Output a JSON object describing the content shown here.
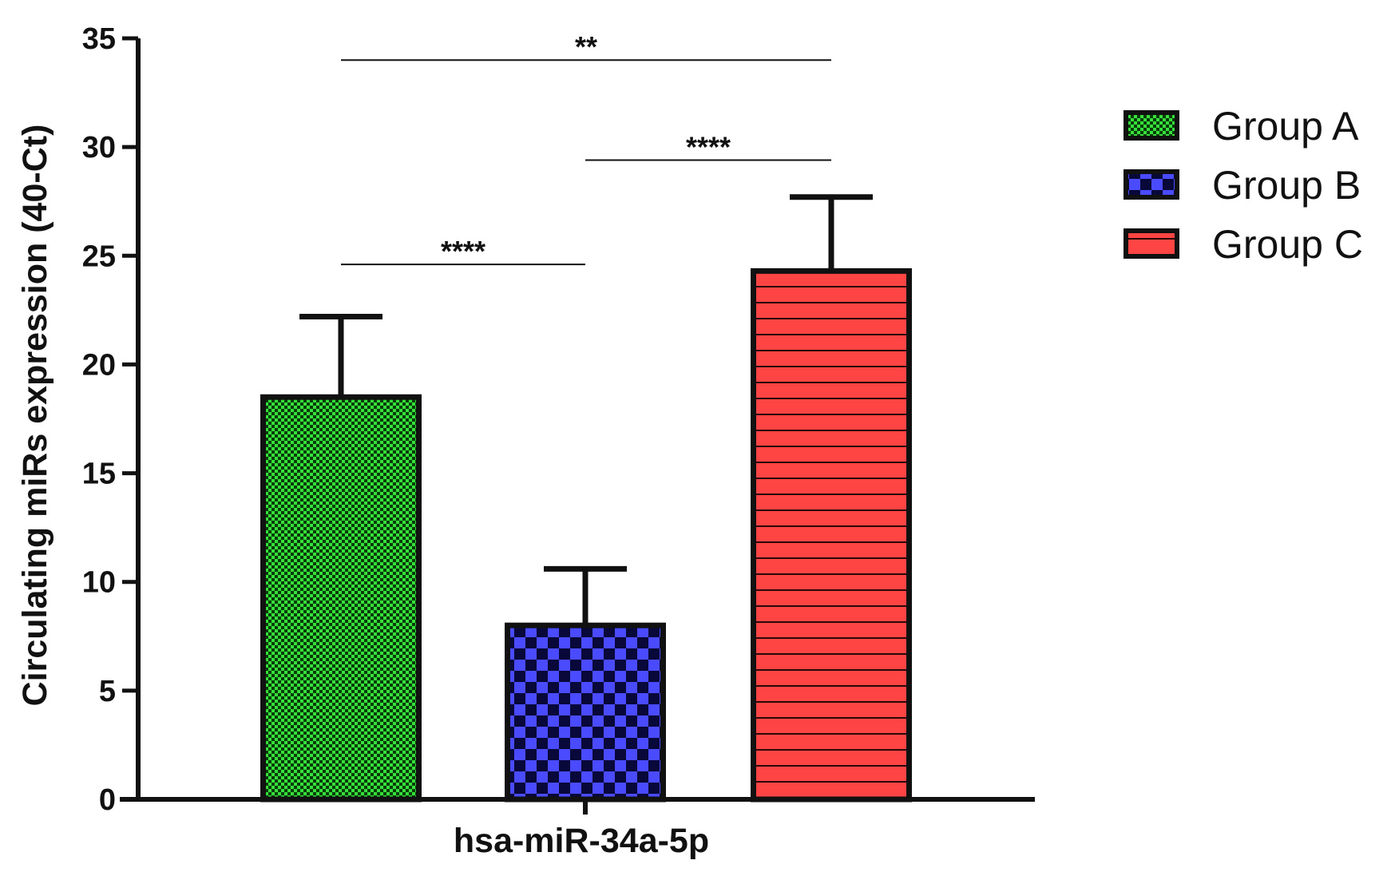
{
  "chart_data": {
    "type": "bar",
    "title": "",
    "xlabel": "hsa-miR-34a-5p",
    "ylabel": "Circulating miRs expression (40-Ct)",
    "ylim": [
      0,
      35
    ],
    "yticks": [
      0,
      5,
      10,
      15,
      20,
      25,
      30,
      35
    ],
    "categories": [
      "hsa-miR-34a-5p"
    ],
    "series": [
      {
        "name": "Group A",
        "values": [
          18.5
        ],
        "error": [
          3.7
        ],
        "color": "#36e03a",
        "pattern": "checker-fine"
      },
      {
        "name": "Group B",
        "values": [
          8.0
        ],
        "error": [
          2.6
        ],
        "color": "#4a4aff",
        "pattern": "checker-coarse"
      },
      {
        "name": "Group C",
        "values": [
          24.3
        ],
        "error": [
          3.4
        ],
        "color": "#ff4444",
        "pattern": "horizontal-stripes"
      }
    ],
    "significance": [
      {
        "from": "Group A",
        "to": "Group C",
        "label": "**",
        "y": 34.0
      },
      {
        "from": "Group B",
        "to": "Group C",
        "label": "****",
        "y": 29.4
      },
      {
        "from": "Group A",
        "to": "Group B",
        "label": "****",
        "y": 24.6
      }
    ],
    "legend_position": "right",
    "grid": false
  }
}
